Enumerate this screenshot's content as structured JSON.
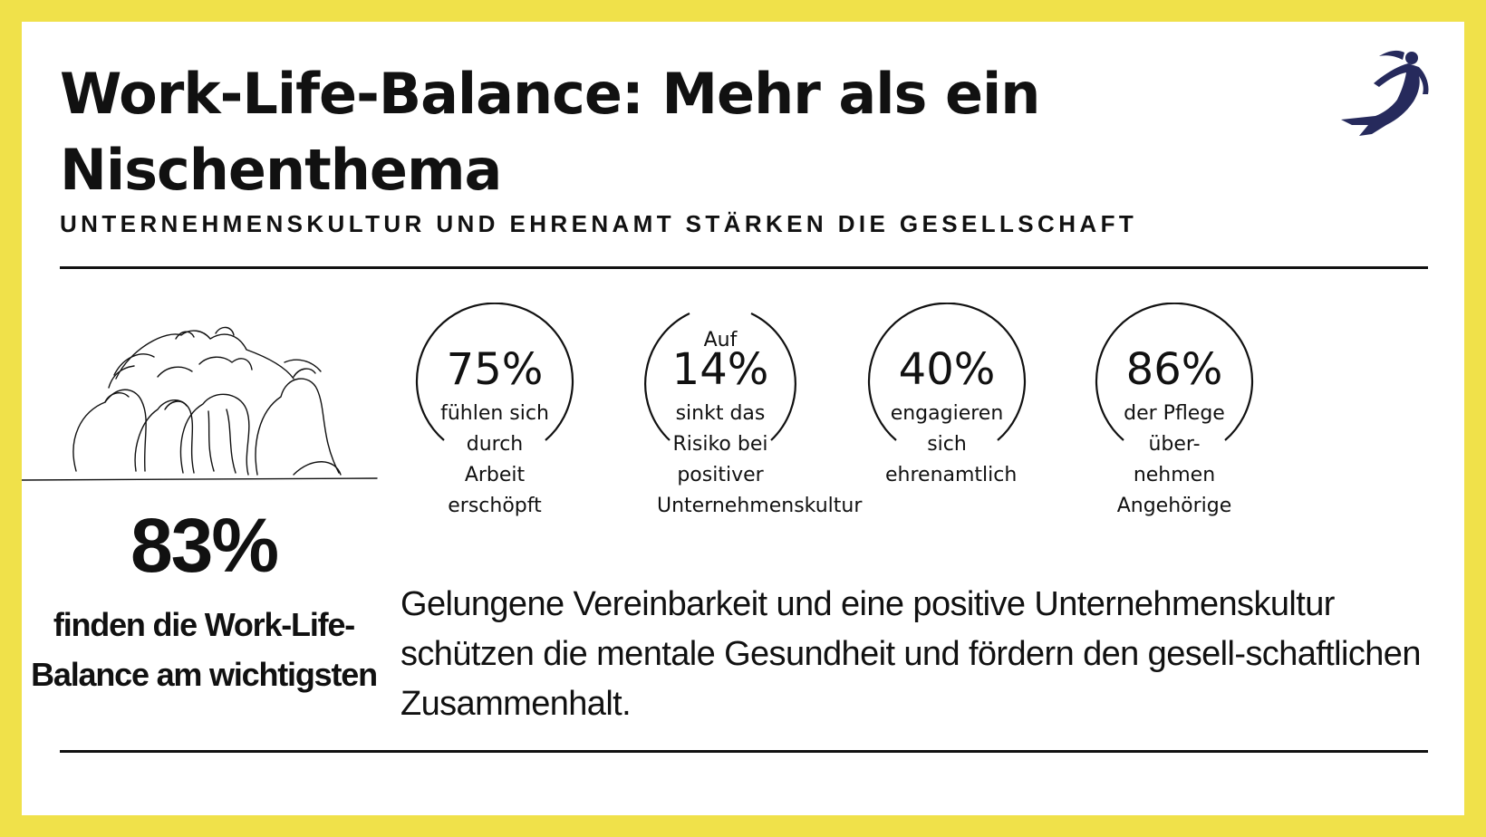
{
  "header": {
    "title": "Work-Life-Balance: Mehr als ein Nischenthema",
    "subtitle": "UNTERNEHMENSKULTUR UND EHRENAMT STÄRKEN DIE GESELLSCHAFT"
  },
  "highlight": {
    "value": "83%",
    "label": "finden die Work-Life-Balance am wichtigsten"
  },
  "stats": [
    {
      "pre": "",
      "value": "75%",
      "description": "fühlen sich durch Arbeit erschöpft"
    },
    {
      "pre": "Auf",
      "value": "14%",
      "description": "sinkt das Risiko bei positiver Unternehmenskultur"
    },
    {
      "pre": "",
      "value": "40%",
      "description": "engagieren sich ehrenamtlich"
    },
    {
      "pre": "",
      "value": "86%",
      "description": "der Pflege über-nehmen Angehörige"
    }
  ],
  "paragraph": "Gelungene Vereinbarkeit und eine positive Unternehmenskultur schützen die mentale Gesundheit und fördern den gesell-schaftlichen Zusammenhalt.",
  "colors": {
    "frame": "#f0e14a",
    "logo": "#262a5c",
    "text": "#111111"
  },
  "icons": {
    "logo": "superhero-woman-logo",
    "illustration": "people-forming-hearts-illustration"
  }
}
